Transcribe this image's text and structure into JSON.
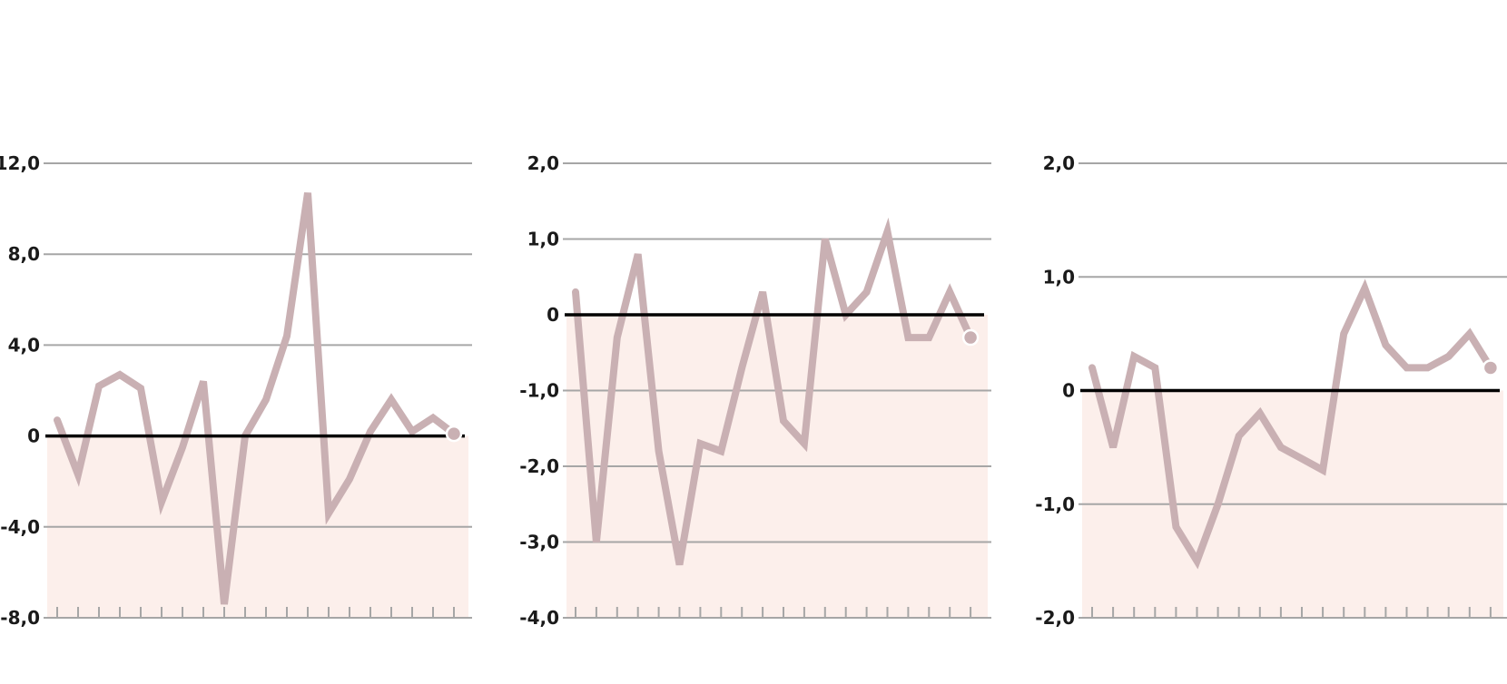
{
  "chart_data": [
    {
      "type": "line",
      "ylim": [
        -8,
        12
      ],
      "yticks": [
        {
          "value": 12,
          "label": "12,0"
        },
        {
          "value": 8,
          "label": "8,0"
        },
        {
          "value": 4,
          "label": "4,0"
        },
        {
          "value": 0,
          "label": "0"
        },
        {
          "value": -4,
          "label": "-4,0"
        },
        {
          "value": -8,
          "label": "-8,0"
        }
      ],
      "x": [
        1,
        2,
        3,
        4,
        5,
        6,
        7,
        8,
        9,
        10,
        11,
        12,
        13,
        14,
        15,
        16,
        17,
        18,
        19,
        20
      ],
      "series": [
        {
          "values": [
            0.7,
            -1.7,
            2.2,
            2.7,
            2.1,
            -2.9,
            -0.5,
            2.4,
            -7.4,
            0,
            1.6,
            4.4,
            10.7,
            -3.4,
            -1.9,
            0.2,
            1.6,
            0.2,
            0.8,
            0.1
          ]
        }
      ],
      "zero_line": true,
      "grid": true,
      "line_color": "#c9b0b3",
      "band_color": "#fcefeb"
    },
    {
      "type": "line",
      "ylim": [
        -4,
        2
      ],
      "yticks": [
        {
          "value": 2,
          "label": "2,0"
        },
        {
          "value": 1,
          "label": "1,0"
        },
        {
          "value": 0,
          "label": "0"
        },
        {
          "value": -1,
          "label": "-1,0"
        },
        {
          "value": -2,
          "label": "-2,0"
        },
        {
          "value": -3,
          "label": "-3,0"
        },
        {
          "value": -4,
          "label": "-4,0"
        }
      ],
      "x": [
        1,
        2,
        3,
        4,
        5,
        6,
        7,
        8,
        9,
        10,
        11,
        12,
        13,
        14,
        15,
        16,
        17,
        18,
        19,
        20
      ],
      "series": [
        {
          "values": [
            0.3,
            -3.0,
            -0.3,
            0.8,
            -1.8,
            -3.3,
            -1.7,
            -1.8,
            -0.7,
            0.3,
            -1.4,
            -1.7,
            1.0,
            0.0,
            0.3,
            1.1,
            -0.3,
            -0.3,
            0.3,
            -0.3
          ]
        }
      ],
      "zero_line": true,
      "grid": true,
      "line_color": "#c9b0b3",
      "band_color": "#fcefeb"
    },
    {
      "type": "line",
      "ylim": [
        -2,
        2
      ],
      "yticks": [
        {
          "value": 2,
          "label": "2,0"
        },
        {
          "value": 1,
          "label": "1,0"
        },
        {
          "value": 0,
          "label": "0"
        },
        {
          "value": -1,
          "label": "-1,0"
        },
        {
          "value": -2,
          "label": "-2,0"
        }
      ],
      "x": [
        1,
        2,
        3,
        4,
        5,
        6,
        7,
        8,
        9,
        10,
        11,
        12,
        13,
        14,
        15,
        16,
        17,
        18,
        19,
        20
      ],
      "series": [
        {
          "values": [
            0.2,
            -0.5,
            0.3,
            0.2,
            -1.2,
            -1.5,
            -1.0,
            -0.4,
            -0.2,
            -0.5,
            -0.6,
            -0.7,
            0.5,
            0.9,
            0.4,
            0.2,
            0.2,
            0.3,
            0.5,
            0.2
          ]
        }
      ],
      "zero_line": true,
      "grid": true,
      "line_color": "#c9b0b3",
      "band_color": "#fcefeb"
    }
  ]
}
